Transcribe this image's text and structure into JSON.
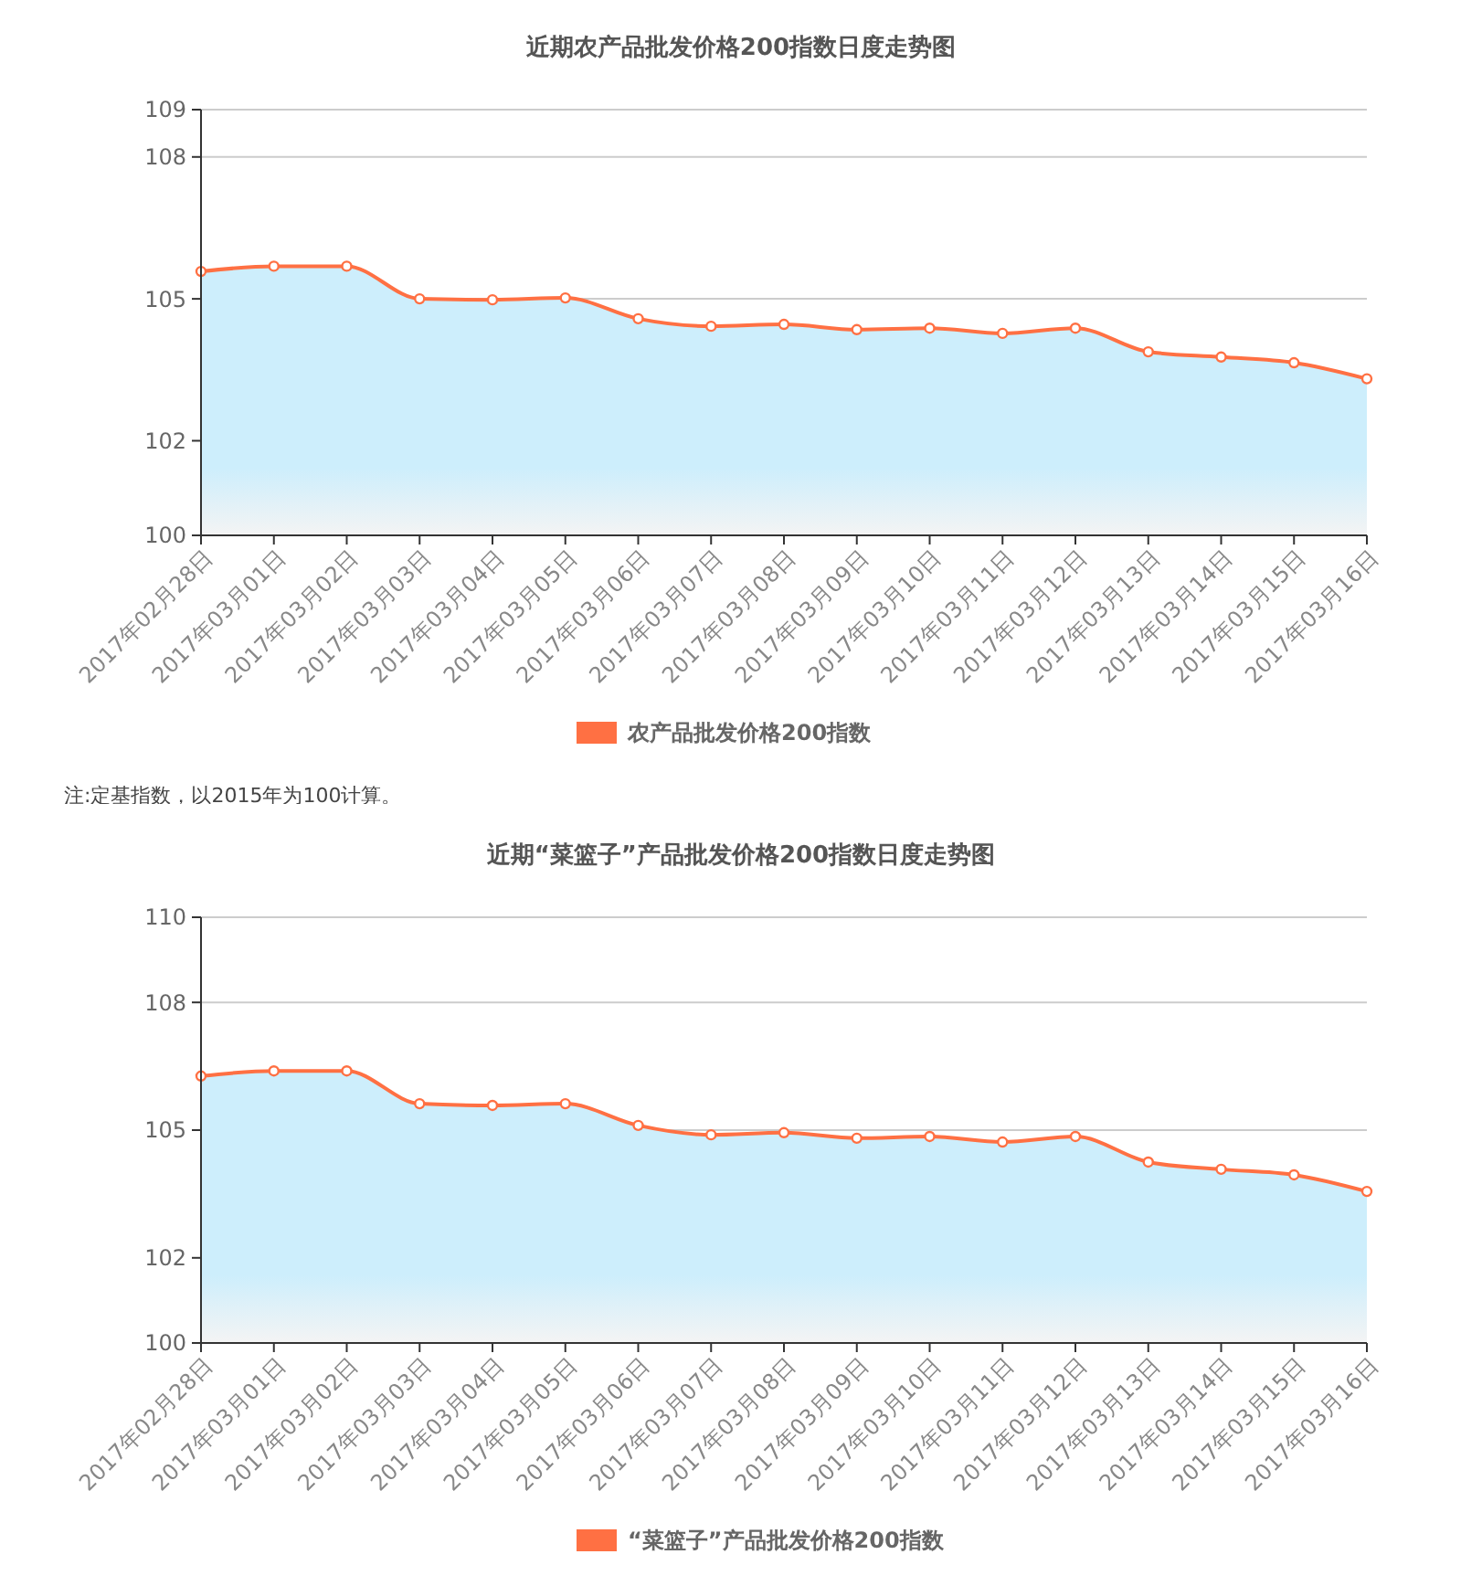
{
  "chart_data": [
    {
      "type": "area",
      "title": "近期农产品批发价格200指数日度走势图",
      "categories": [
        "2017年02月28日",
        "2017年03月01日",
        "2017年03月02日",
        "2017年03月03日",
        "2017年03月04日",
        "2017年03月05日",
        "2017年03月06日",
        "2017年03月07日",
        "2017年03月08日",
        "2017年03月09日",
        "2017年03月10日",
        "2017年03月11日",
        "2017年03月12日",
        "2017年03月13日",
        "2017年03月14日",
        "2017年03月15日",
        "2017年03月16日"
      ],
      "series": [
        {
          "name": "农产品批发价格200指数",
          "color": "#ff7043",
          "values": [
            105.58,
            105.69,
            105.69,
            105.0,
            104.98,
            105.02,
            104.58,
            104.42,
            104.46,
            104.35,
            104.38,
            104.27,
            104.38,
            103.88,
            103.77,
            103.65,
            103.31
          ]
        }
      ],
      "ylim": [
        100,
        109
      ],
      "yticks": [
        100,
        102,
        105,
        108,
        109
      ],
      "grid": "y",
      "legend": "bottom",
      "marker": "circle",
      "annotations": [
        "注:定基指数，以2015年为100计算。"
      ]
    },
    {
      "type": "area",
      "title": "近期“菜篮子”产品批发价格200指数日度走势图",
      "categories": [
        "2017年02月28日",
        "2017年03月01日",
        "2017年03月02日",
        "2017年03月03日",
        "2017年03月04日",
        "2017年03月05日",
        "2017年03月06日",
        "2017年03月07日",
        "2017年03月08日",
        "2017年03月09日",
        "2017年03月10日",
        "2017年03月11日",
        "2017年03月12日",
        "2017年03月13日",
        "2017年03月14日",
        "2017年03月15日",
        "2017年03月16日"
      ],
      "series": [
        {
          "name": "“菜篮子”产品批发价格200指数",
          "color": "#ff7043",
          "values": [
            106.27,
            106.39,
            106.39,
            105.62,
            105.58,
            105.62,
            105.11,
            104.89,
            104.94,
            104.81,
            104.85,
            104.72,
            104.85,
            104.25,
            104.08,
            103.95,
            103.56
          ]
        }
      ],
      "ylim": [
        100,
        110
      ],
      "yticks": [
        100,
        102,
        105,
        108,
        110
      ],
      "grid": "y",
      "legend": "bottom",
      "marker": "circle"
    }
  ]
}
